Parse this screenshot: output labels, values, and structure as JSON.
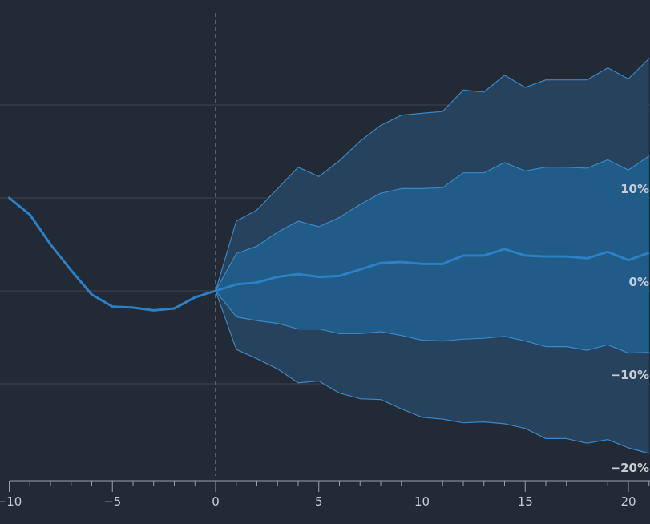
{
  "chart_data": {
    "type": "area",
    "title": "",
    "xlabel": "",
    "ylabel": "",
    "xlim": [
      -10,
      21
    ],
    "ylim": [
      -21,
      31
    ],
    "x_ticks": [
      -10,
      -5,
      0,
      5,
      10,
      15,
      20
    ],
    "x_tick_labels": [
      "−10",
      "−5",
      "0",
      "5",
      "10",
      "15",
      "20"
    ],
    "y_ticks": [
      -20,
      -10,
      0,
      10
    ],
    "y_tick_labels": [
      "−20%",
      "−10%",
      "0%",
      "10%"
    ],
    "grid": {
      "horizontal": true,
      "vertical": false,
      "values": [
        -10,
        0,
        10,
        20
      ]
    },
    "marker_x": 0,
    "history": {
      "x": [
        -10,
        -9,
        -8,
        -7,
        -6,
        -5,
        -4,
        -3,
        -2,
        -1,
        0
      ],
      "y": [
        10,
        8.2,
        5,
        2.2,
        -0.4,
        -1.7,
        -1.8,
        -2.1,
        -1.9,
        -0.7,
        0
      ]
    },
    "forecast": {
      "x": [
        0,
        1,
        2,
        3,
        4,
        5,
        6,
        7,
        8,
        9,
        10,
        11,
        12,
        13,
        14,
        15,
        16,
        17,
        18,
        19,
        20,
        21
      ],
      "outer_upper": [
        0,
        7.5,
        8.7,
        11,
        13.3,
        12.3,
        14,
        16.1,
        17.8,
        18.9,
        19.1,
        19.3,
        21.6,
        21.4,
        23.2,
        21.9,
        22.7,
        22.7,
        22.7,
        24,
        22.8,
        25
      ],
      "inner_upper": [
        0,
        4,
        4.8,
        6.3,
        7.5,
        6.9,
        7.9,
        9.3,
        10.5,
        11,
        11,
        11.1,
        12.7,
        12.7,
        13.8,
        12.9,
        13.3,
        13.3,
        13.2,
        14.1,
        13,
        14.5
      ],
      "median": [
        0,
        0.7,
        0.9,
        1.5,
        1.8,
        1.5,
        1.6,
        2.3,
        3,
        3.1,
        2.9,
        2.9,
        3.8,
        3.8,
        4.5,
        3.8,
        3.7,
        3.7,
        3.5,
        4.2,
        3.3,
        4.1
      ],
      "inner_lower": [
        0,
        -2.8,
        -3.2,
        -3.5,
        -4.1,
        -4.1,
        -4.6,
        -4.6,
        -4.4,
        -4.8,
        -5.3,
        -5.4,
        -5.2,
        -5.1,
        -4.9,
        -5.4,
        -6,
        -6,
        -6.4,
        -5.8,
        -6.7,
        -6.6
      ],
      "outer_lower": [
        0,
        -6.3,
        -7.3,
        -8.4,
        -9.9,
        -9.7,
        -11,
        -11.6,
        -11.7,
        -12.7,
        -13.6,
        -13.8,
        -14.2,
        -14.1,
        -14.3,
        -14.8,
        -15.9,
        -15.9,
        -16.4,
        -16,
        -16.9,
        -17.5
      ]
    },
    "colors": {
      "background": "#222a35",
      "line": "#2e7fc4",
      "outer_band": "#26425d",
      "inner_band": "#215b88",
      "band_edge": "#3a87c8",
      "grid": "#3a4450",
      "axis": "#9aa3ad",
      "text": "#c7ccd3"
    }
  }
}
